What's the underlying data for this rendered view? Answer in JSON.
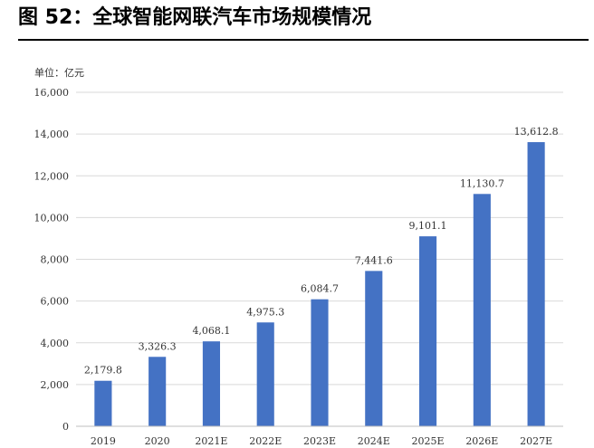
{
  "header": {
    "title": "图  52：全球智能网联汽车市场规模情况"
  },
  "chart_data": {
    "type": "bar",
    "title": "",
    "unit_label": "单位：亿元",
    "xlabel": "",
    "ylabel": "",
    "ylim": [
      0,
      16000
    ],
    "yticks": [
      0,
      2000,
      4000,
      6000,
      8000,
      10000,
      12000,
      14000,
      16000
    ],
    "ytick_labels": [
      "0",
      "2,000",
      "4,000",
      "6,000",
      "8,000",
      "10,000",
      "12,000",
      "14,000",
      "16,000"
    ],
    "grid": true,
    "legend": "none",
    "categories": [
      "2019",
      "2020",
      "2021E",
      "2022E",
      "2023E",
      "2024E",
      "2025E",
      "2026E",
      "2027E"
    ],
    "values": [
      2179.8,
      3326.3,
      4068.1,
      4975.3,
      6084.7,
      7441.6,
      9101.1,
      11130.7,
      13612.8
    ],
    "value_labels": [
      "2,179.8",
      "3,326.3",
      "4,068.1",
      "4,975.3",
      "6,084.7",
      "7,441.6",
      "9,101.1",
      "11,130.7",
      "13,612.8"
    ],
    "bar_color": "#4472C4",
    "grid_color": "#D9D9D9"
  }
}
